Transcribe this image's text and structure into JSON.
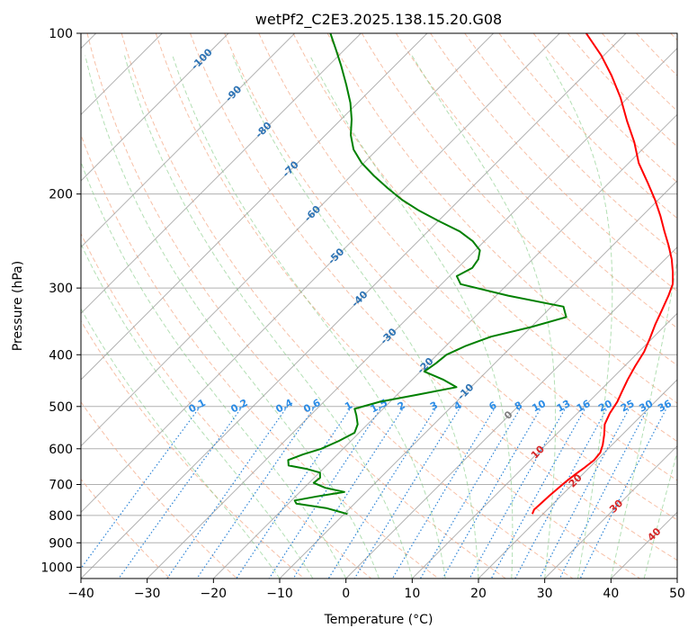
{
  "chart_data": {
    "type": "line",
    "title": "wetPf2_C2E3.2025.138.15.20.G08",
    "xlabel": "Temperature (°C)",
    "ylabel": "Pressure (hPa)",
    "xlim": [
      -40,
      50
    ],
    "ylim": [
      1050,
      100
    ],
    "y_scale": "log",
    "grid": true,
    "x_ticks": [
      -40,
      -30,
      -20,
      -10,
      0,
      10,
      20,
      30,
      40,
      50
    ],
    "y_ticks": [
      100,
      200,
      300,
      400,
      500,
      600,
      700,
      800,
      900,
      1000
    ],
    "isotherm_labels": [
      -100,
      -90,
      -80,
      -70,
      -60,
      -50,
      -40,
      -30,
      -20,
      -10,
      0,
      10,
      20,
      30,
      40
    ],
    "mixing_ratio_labels": [
      "0.1",
      "0.2",
      "0.4",
      "0.6",
      "1",
      "1.5",
      "2",
      "3",
      "4",
      "6",
      "8",
      "10",
      "13",
      "16",
      "20",
      "25",
      "30",
      "36"
    ],
    "series": [
      {
        "color": "#ff0000",
        "points": [
          [
            18.4,
            795
          ],
          [
            18.0,
            780
          ],
          [
            18.1,
            760
          ],
          [
            18.2,
            735
          ],
          [
            18.4,
            710
          ],
          [
            18.6,
            690
          ],
          [
            18.9,
            670
          ],
          [
            19.3,
            650
          ],
          [
            19.6,
            630
          ],
          [
            19.4,
            610
          ],
          [
            18.6,
            590
          ],
          [
            17.3,
            565
          ],
          [
            15.8,
            540
          ],
          [
            14.9,
            515
          ],
          [
            14.3,
            490
          ],
          [
            13.5,
            470
          ],
          [
            12.5,
            445
          ],
          [
            11.6,
            420
          ],
          [
            10.8,
            395
          ],
          [
            9.6,
            372
          ],
          [
            8.3,
            350
          ],
          [
            7.2,
            330
          ],
          [
            6.0,
            310
          ],
          [
            4.9,
            295
          ],
          [
            3.1,
            280
          ],
          [
            1.0,
            265
          ],
          [
            -1.5,
            250
          ],
          [
            -4.3,
            235
          ],
          [
            -7.2,
            220
          ],
          [
            -10.5,
            205
          ],
          [
            -14.3,
            190
          ],
          [
            -18.5,
            175
          ],
          [
            -22.3,
            160
          ],
          [
            -26.6,
            146
          ],
          [
            -31.1,
            132
          ],
          [
            -35.8,
            120
          ],
          [
            -40.4,
            110
          ],
          [
            -46.0,
            100
          ]
        ]
      },
      {
        "color": "#008000",
        "points": [
          [
            -9.5,
            795
          ],
          [
            -13.6,
            775
          ],
          [
            -18.8,
            760
          ],
          [
            -19.5,
            750
          ],
          [
            -16.8,
            737
          ],
          [
            -13.3,
            723
          ],
          [
            -16.8,
            710
          ],
          [
            -19.3,
            695
          ],
          [
            -19.1,
            680
          ],
          [
            -19.9,
            665
          ],
          [
            -22.3,
            655
          ],
          [
            -25.7,
            645
          ],
          [
            -26.6,
            630
          ],
          [
            -25.2,
            615
          ],
          [
            -23.3,
            600
          ],
          [
            -21.8,
            580
          ],
          [
            -20.7,
            560
          ],
          [
            -21.5,
            540
          ],
          [
            -23.0,
            520
          ],
          [
            -24.3,
            505
          ],
          [
            -21.6,
            490
          ],
          [
            -16.9,
            475
          ],
          [
            -12.2,
            460
          ],
          [
            -15.4,
            445
          ],
          [
            -19.4,
            430
          ],
          [
            -18.9,
            415
          ],
          [
            -18.6,
            400
          ],
          [
            -17.0,
            385
          ],
          [
            -14.6,
            370
          ],
          [
            -10.0,
            355
          ],
          [
            -6.2,
            340
          ],
          [
            -8.2,
            325
          ],
          [
            -18.2,
            310
          ],
          [
            -27.1,
            295
          ],
          [
            -28.9,
            285
          ],
          [
            -27.8,
            275
          ],
          [
            -28.2,
            265
          ],
          [
            -29.3,
            255
          ],
          [
            -31.8,
            245
          ],
          [
            -35.2,
            235
          ],
          [
            -39.8,
            225
          ],
          [
            -44.4,
            215
          ],
          [
            -48.7,
            205
          ],
          [
            -52.6,
            195
          ],
          [
            -56.5,
            185
          ],
          [
            -60.3,
            175
          ],
          [
            -63.6,
            165
          ],
          [
            -66.2,
            155
          ],
          [
            -68.4,
            145
          ],
          [
            -71.1,
            135
          ],
          [
            -74.4,
            125
          ],
          [
            -78.1,
            115
          ],
          [
            -81.0,
            108
          ],
          [
            -84.6,
            100
          ]
        ]
      }
    ]
  }
}
